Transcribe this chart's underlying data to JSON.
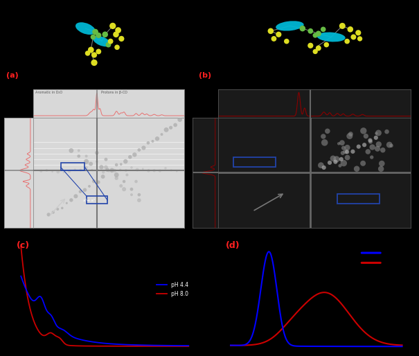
{
  "bg_color": "#000000",
  "panel_a_label": "(a)",
  "panel_b_label": "(b)",
  "panel_c_label": "(c)",
  "panel_d_label": "(d)",
  "label_color": "#ff2020",
  "blue_line_color": "#0000ff",
  "red_line_color": "#cc0000",
  "legend_c": [
    "pH 4.4",
    "pH 8.0"
  ],
  "nmr_panel_bg": "#d8d8d8",
  "nmr_border_color": "#888888",
  "crosshair_color_a": "#888888",
  "crosshair_color_b": "#777777",
  "spectrum_color_a": "#e87070",
  "spectrum_color_b": "#8b0000",
  "rect_blue_color": "#2244aa",
  "mol_cyan": "#00b8d4",
  "mol_green": "#66bb44",
  "mol_yellow": "#dddd22",
  "mol_line": "#888888",
  "top_bg": "#000000"
}
